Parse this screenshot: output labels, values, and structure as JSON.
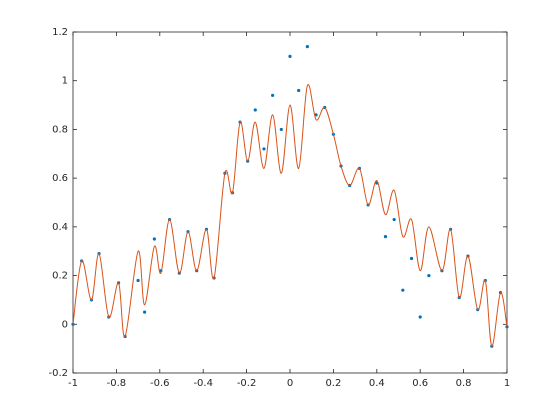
{
  "chart_data": {
    "type": "scatter-line",
    "x": [
      -1.0,
      -0.96,
      -0.915,
      -0.88,
      -0.835,
      -0.79,
      -0.76,
      -0.7,
      -0.67,
      -0.625,
      -0.595,
      -0.555,
      -0.51,
      -0.47,
      -0.43,
      -0.385,
      -0.35,
      -0.3,
      -0.265,
      -0.23,
      -0.195,
      -0.16,
      -0.12,
      -0.08,
      -0.04,
      0.0,
      0.04,
      0.08,
      0.12,
      0.16,
      0.2,
      0.235,
      0.275,
      0.32,
      0.36,
      0.4,
      0.44,
      0.48,
      0.52,
      0.56,
      0.6,
      0.64,
      0.7,
      0.74,
      0.78,
      0.82,
      0.865,
      0.9,
      0.93,
      0.97,
      1.0
    ],
    "series": [
      {
        "kind": "scatter",
        "color": "#0072bd",
        "values": [
          0.0,
          0.26,
          0.1,
          0.29,
          0.03,
          0.17,
          -0.05,
          0.18,
          0.05,
          0.35,
          0.22,
          0.43,
          0.21,
          0.38,
          0.22,
          0.39,
          0.19,
          0.62,
          0.54,
          0.83,
          0.67,
          0.88,
          0.72,
          0.94,
          0.8,
          1.1,
          0.96,
          1.14,
          0.86,
          0.89,
          0.78,
          0.65,
          0.57,
          0.64,
          0.49,
          0.58,
          0.36,
          0.43,
          0.14,
          0.27,
          0.03,
          0.2,
          0.22,
          0.39,
          0.11,
          0.28,
          0.06,
          0.18,
          -0.09,
          0.13,
          -0.01
        ]
      },
      {
        "kind": "line",
        "color": "#d95319",
        "values": [
          0.0,
          0.26,
          0.1,
          0.29,
          0.03,
          0.17,
          -0.05,
          0.3,
          0.08,
          0.32,
          0.21,
          0.43,
          0.21,
          0.38,
          0.22,
          0.39,
          0.19,
          0.62,
          0.54,
          0.83,
          0.67,
          0.83,
          0.64,
          0.86,
          0.62,
          0.9,
          0.64,
          0.98,
          0.84,
          0.89,
          0.78,
          0.65,
          0.57,
          0.64,
          0.49,
          0.59,
          0.45,
          0.55,
          0.36,
          0.43,
          0.22,
          0.4,
          0.22,
          0.39,
          0.11,
          0.28,
          0.06,
          0.18,
          -0.09,
          0.13,
          -0.01
        ]
      }
    ],
    "xlim": [
      -1,
      1
    ],
    "xticks": [
      -1,
      -0.8,
      -0.6,
      -0.4,
      -0.2,
      0,
      0.2,
      0.4,
      0.6,
      0.8,
      1
    ],
    "ylim": [
      -0.2,
      1.2
    ],
    "yticks": [
      -0.2,
      0,
      0.2,
      0.4,
      0.6,
      0.8,
      1,
      1.2
    ]
  }
}
